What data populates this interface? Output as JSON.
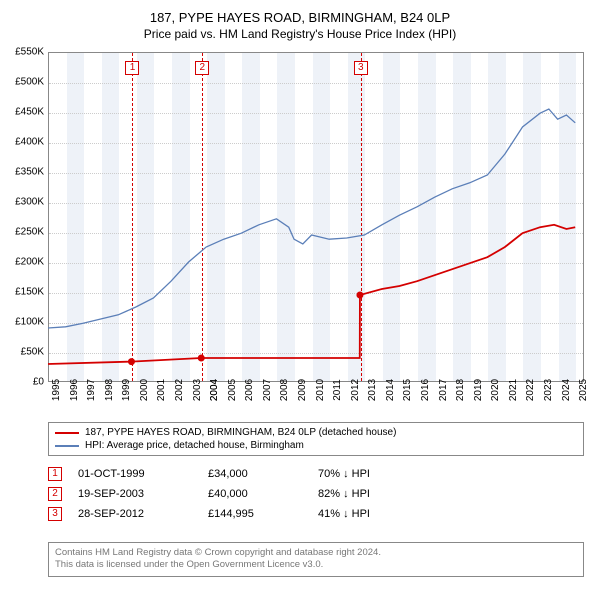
{
  "title": "187, PYPE HAYES ROAD, BIRMINGHAM, B24 0LP",
  "subtitle": "Price paid vs. HM Land Registry's House Price Index (HPI)",
  "chart": {
    "type": "line",
    "x_start": 1995,
    "x_end": 2025.5,
    "y_min": 0,
    "y_max": 550000,
    "y_tick_step": 50000,
    "y_tick_prefix": "£",
    "y_tick_suffix": "K",
    "background_color": "#ffffff",
    "grid_color": "#cccccc",
    "band_color": "#eef2f8",
    "band_years": [
      1996,
      1998,
      2000,
      2002,
      2004,
      2006,
      2008,
      2010,
      2012,
      2014,
      2016,
      2018,
      2020,
      2022,
      2024
    ],
    "x_ticks": [
      1995,
      1996,
      1997,
      1998,
      1999,
      2000,
      2001,
      2002,
      2003,
      2004,
      2004,
      2005,
      2006,
      2007,
      2008,
      2009,
      2010,
      2011,
      2012,
      2013,
      2014,
      2015,
      2016,
      2017,
      2018,
      2019,
      2020,
      2021,
      2022,
      2023,
      2024,
      2025
    ],
    "series": [
      {
        "name": "price_paid",
        "label": "187, PYPE HAYES ROAD, BIRMINGHAM, B24 0LP (detached house)",
        "color": "#d40000",
        "line_width": 1.8,
        "points": [
          [
            1995.0,
            30000
          ],
          [
            1999.75,
            34000
          ],
          [
            2003.72,
            40000
          ],
          [
            2012.74,
            40000
          ],
          [
            2012.75,
            144995
          ],
          [
            2014.0,
            155000
          ],
          [
            2015.0,
            160000
          ],
          [
            2016.0,
            168000
          ],
          [
            2017.0,
            178000
          ],
          [
            2018.0,
            188000
          ],
          [
            2019.0,
            198000
          ],
          [
            2020.0,
            208000
          ],
          [
            2021.0,
            225000
          ],
          [
            2022.0,
            248000
          ],
          [
            2023.0,
            258000
          ],
          [
            2023.8,
            262000
          ],
          [
            2024.5,
            255000
          ],
          [
            2025.0,
            258000
          ]
        ],
        "markers": [
          {
            "x": 1999.75,
            "y": 34000
          },
          {
            "x": 2003.72,
            "y": 40000
          },
          {
            "x": 2012.75,
            "y": 144995
          }
        ],
        "marker_radius": 3.5
      },
      {
        "name": "hpi",
        "label": "HPI: Average price, detached house, Birmingham",
        "color": "#5b7fb8",
        "line_width": 1.3,
        "points": [
          [
            1995.0,
            90000
          ],
          [
            1996.0,
            92000
          ],
          [
            1997.0,
            98000
          ],
          [
            1998.0,
            105000
          ],
          [
            1999.0,
            112000
          ],
          [
            2000.0,
            125000
          ],
          [
            2001.0,
            140000
          ],
          [
            2002.0,
            168000
          ],
          [
            2003.0,
            200000
          ],
          [
            2004.0,
            225000
          ],
          [
            2005.0,
            238000
          ],
          [
            2006.0,
            248000
          ],
          [
            2007.0,
            262000
          ],
          [
            2008.0,
            272000
          ],
          [
            2008.7,
            258000
          ],
          [
            2009.0,
            238000
          ],
          [
            2009.5,
            230000
          ],
          [
            2010.0,
            245000
          ],
          [
            2011.0,
            238000
          ],
          [
            2012.0,
            240000
          ],
          [
            2013.0,
            245000
          ],
          [
            2014.0,
            262000
          ],
          [
            2015.0,
            278000
          ],
          [
            2016.0,
            292000
          ],
          [
            2017.0,
            308000
          ],
          [
            2018.0,
            322000
          ],
          [
            2019.0,
            332000
          ],
          [
            2020.0,
            345000
          ],
          [
            2021.0,
            380000
          ],
          [
            2022.0,
            425000
          ],
          [
            2023.0,
            448000
          ],
          [
            2023.5,
            455000
          ],
          [
            2024.0,
            438000
          ],
          [
            2024.5,
            445000
          ],
          [
            2025.0,
            432000
          ]
        ]
      }
    ],
    "events": [
      {
        "n": "1",
        "x": 1999.75,
        "date": "01-OCT-1999",
        "price": "£34,000",
        "delta": "70% ↓ HPI"
      },
      {
        "n": "2",
        "x": 2003.72,
        "date": "19-SEP-2003",
        "price": "£40,000",
        "delta": "82% ↓ HPI"
      },
      {
        "n": "3",
        "x": 2012.74,
        "date": "28-SEP-2012",
        "price": "£144,995",
        "delta": "41% ↓ HPI"
      }
    ]
  },
  "legend": {
    "title": ""
  },
  "footnote": {
    "line1": "Contains HM Land Registry data © Crown copyright and database right 2024.",
    "line2": "This data is licensed under the Open Government Licence v3.0."
  }
}
